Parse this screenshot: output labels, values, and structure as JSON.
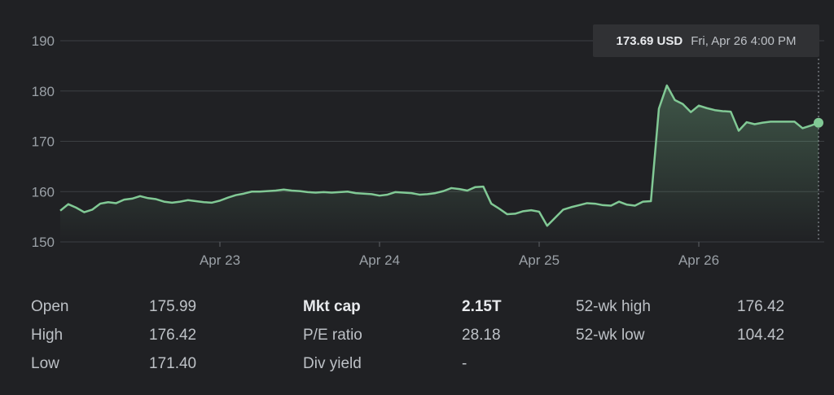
{
  "chart_data": {
    "type": "area",
    "ylim": [
      150,
      190
    ],
    "yticks": [
      150,
      160,
      170,
      180,
      190
    ],
    "x_tick_labels": [
      "Apr 23",
      "Apr 24",
      "Apr 25",
      "Apr 26"
    ],
    "x_tick_index": [
      20,
      40,
      60,
      80
    ],
    "grid": true,
    "line_color": "#81c995",
    "values": [
      156.2,
      157.5,
      156.8,
      155.9,
      156.4,
      157.6,
      157.9,
      157.7,
      158.4,
      158.6,
      159.1,
      158.7,
      158.5,
      158.0,
      157.8,
      158.0,
      158.3,
      158.1,
      157.9,
      157.8,
      158.2,
      158.8,
      159.3,
      159.6,
      160.0,
      160.0,
      160.1,
      160.2,
      160.4,
      160.2,
      160.1,
      159.9,
      159.8,
      159.9,
      159.8,
      159.9,
      160.0,
      159.7,
      159.6,
      159.5,
      159.2,
      159.4,
      159.9,
      159.8,
      159.7,
      159.4,
      159.5,
      159.7,
      160.1,
      160.7,
      160.5,
      160.2,
      160.9,
      161.0,
      157.6,
      156.6,
      155.5,
      155.6,
      156.1,
      156.3,
      156.0,
      153.2,
      154.8,
      156.4,
      156.9,
      157.3,
      157.7,
      157.6,
      157.3,
      157.2,
      158.0,
      157.4,
      157.2,
      158.0,
      158.1,
      176.5,
      181.1,
      178.2,
      177.4,
      175.8,
      177.1,
      176.6,
      176.2,
      176.0,
      175.9,
      172.1,
      173.8,
      173.4,
      173.7,
      173.9,
      173.9,
      173.9,
      173.9,
      172.6,
      173.1,
      173.69
    ]
  },
  "tooltip": {
    "price": "173.69 USD",
    "time": "Fri, Apr 26 4:00 PM"
  },
  "stats": {
    "open": {
      "label": "Open",
      "value": "175.99"
    },
    "high": {
      "label": "High",
      "value": "176.42"
    },
    "low": {
      "label": "Low",
      "value": "171.40"
    },
    "mkt_cap": {
      "label": "Mkt cap",
      "value": "2.15T"
    },
    "pe_ratio": {
      "label": "P/E ratio",
      "value": "28.18"
    },
    "div_yield": {
      "label": "Div yield",
      "value": "-"
    },
    "wk52_high": {
      "label": "52-wk high",
      "value": "176.42"
    },
    "wk52_low": {
      "label": "52-wk low",
      "value": "104.42"
    }
  }
}
